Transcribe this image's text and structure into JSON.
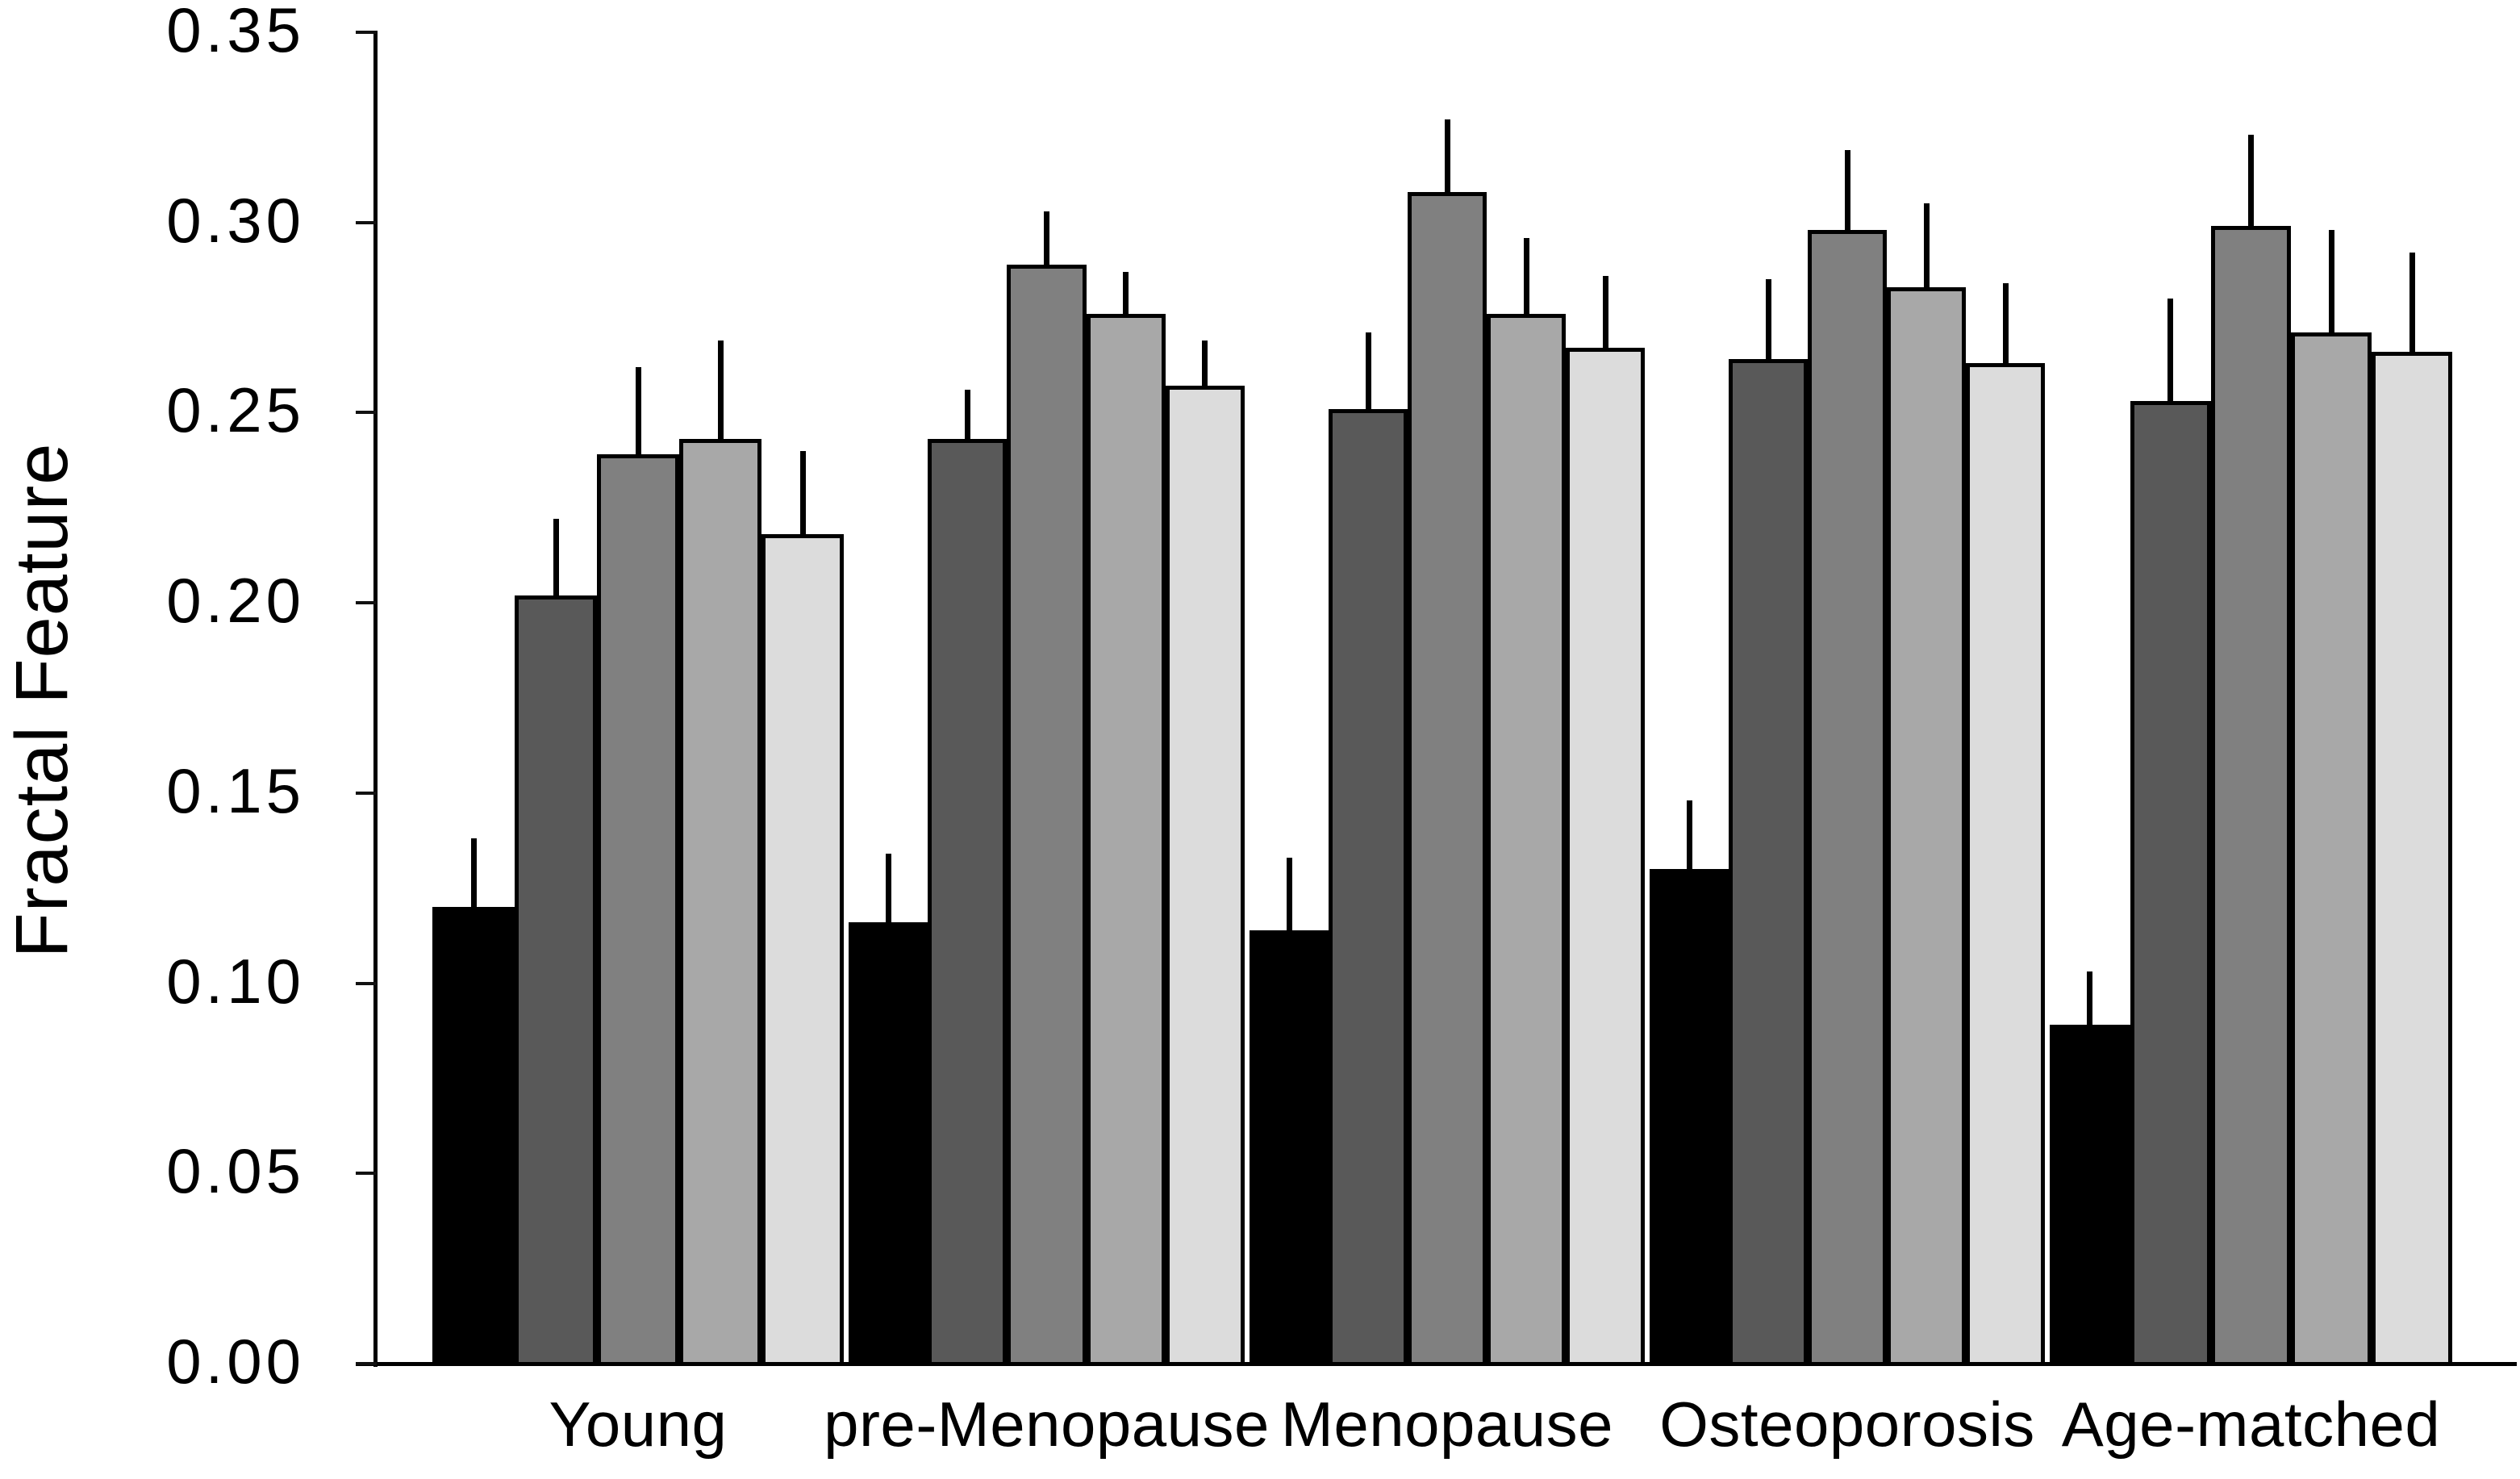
{
  "figure": {
    "background": "#ffffff",
    "text_color": "#000000"
  },
  "chart_data": {
    "type": "bar",
    "title": "",
    "xlabel": "",
    "ylabel": "Fractal Feature",
    "categories": [
      "Young",
      "pre-Menopause",
      "Menopause",
      "Osteoporosis",
      "Age-matched"
    ],
    "series": [
      {
        "name": "black",
        "color": "#000000",
        "values": [
          0.12,
          0.116,
          0.114,
          0.13,
          0.089
        ],
        "errors": [
          0.018,
          0.018,
          0.019,
          0.018,
          0.014
        ]
      },
      {
        "name": "dark-gray",
        "color": "#595959",
        "values": [
          0.202,
          0.243,
          0.251,
          0.264,
          0.253
        ],
        "errors": [
          0.02,
          0.013,
          0.02,
          0.021,
          0.027
        ]
      },
      {
        "name": "medium-gray",
        "color": "#808080",
        "values": [
          0.239,
          0.289,
          0.308,
          0.298,
          0.299
        ],
        "errors": [
          0.023,
          0.014,
          0.019,
          0.021,
          0.024
        ]
      },
      {
        "name": "light-gray",
        "color": "#a8a8a8",
        "values": [
          0.243,
          0.276,
          0.276,
          0.283,
          0.271
        ],
        "errors": [
          0.026,
          0.011,
          0.02,
          0.022,
          0.027
        ]
      },
      {
        "name": "lightest-gray",
        "color": "#dcdcdc",
        "values": [
          0.218,
          0.257,
          0.267,
          0.263,
          0.266
        ],
        "errors": [
          0.022,
          0.012,
          0.019,
          0.021,
          0.026
        ]
      }
    ],
    "yticks": [
      "0.00",
      "0.05",
      "0.10",
      "0.15",
      "0.20",
      "0.25",
      "0.30",
      "0.35"
    ],
    "ylim": [
      0,
      0.35
    ],
    "grid": false,
    "legend": "none",
    "error_bars": "upper-only",
    "bar_outline_color": "#000000"
  }
}
